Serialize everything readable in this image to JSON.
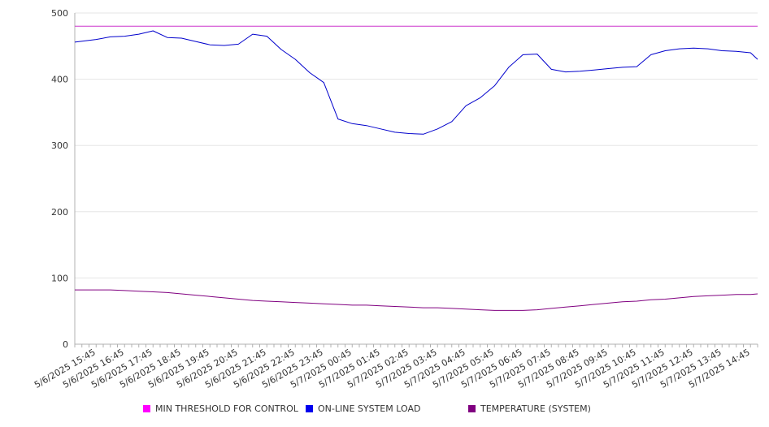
{
  "chart_data": {
    "type": "line",
    "title": "",
    "xlabel": "",
    "ylabel": "",
    "ylim": [
      0,
      500
    ],
    "yticks": [
      0,
      100,
      200,
      300,
      400,
      500
    ],
    "grid": true,
    "legend_position": "bottom",
    "x_tick_labels": [
      "5/6/2025 15:45",
      "5/6/2025 16:45",
      "5/6/2025 17:45",
      "5/6/2025 18:45",
      "5/6/2025 19:45",
      "5/6/2025 20:45",
      "5/6/2025 21:45",
      "5/6/2025 22:45",
      "5/6/2025 23:45",
      "5/7/2025 00:45",
      "5/7/2025 01:45",
      "5/7/2025 02:45",
      "5/7/2025 03:45",
      "5/7/2025 04:45",
      "5/7/2025 05:45",
      "5/7/2025 06:45",
      "5/7/2025 07:45",
      "5/7/2025 08:45",
      "5/7/2025 09:45",
      "5/7/2025 10:45",
      "5/7/2025 11:45",
      "5/7/2025 12:45",
      "5/7/2025 13:45",
      "5/7/2025 14:45"
    ],
    "x": [
      "5/6/2025 15:00",
      "5/6/2025 15:45",
      "5/6/2025 16:15",
      "5/6/2025 16:45",
      "5/6/2025 17:15",
      "5/6/2025 17:45",
      "5/6/2025 18:15",
      "5/6/2025 18:45",
      "5/6/2025 19:15",
      "5/6/2025 19:45",
      "5/6/2025 20:15",
      "5/6/2025 20:45",
      "5/6/2025 21:15",
      "5/6/2025 21:45",
      "5/6/2025 22:15",
      "5/6/2025 22:45",
      "5/6/2025 23:15",
      "5/6/2025 23:45",
      "5/7/2025 00:15",
      "5/7/2025 00:45",
      "5/7/2025 01:15",
      "5/7/2025 01:45",
      "5/7/2025 02:15",
      "5/7/2025 02:45",
      "5/7/2025 03:15",
      "5/7/2025 03:45",
      "5/7/2025 04:15",
      "5/7/2025 04:45",
      "5/7/2025 05:15",
      "5/7/2025 05:45",
      "5/7/2025 06:15",
      "5/7/2025 06:45",
      "5/7/2025 07:15",
      "5/7/2025 07:45",
      "5/7/2025 08:15",
      "5/7/2025 08:45",
      "5/7/2025 09:15",
      "5/7/2025 09:45",
      "5/7/2025 10:15",
      "5/7/2025 10:45",
      "5/7/2025 11:15",
      "5/7/2025 11:45",
      "5/7/2025 12:15",
      "5/7/2025 12:45",
      "5/7/2025 13:15",
      "5/7/2025 13:45",
      "5/7/2025 14:15",
      "5/7/2025 14:45",
      "5/7/2025 15:00"
    ],
    "series": [
      {
        "name": "MIN THRESHOLD FOR CONTROL",
        "color": "#cc33cc",
        "legend_color": "#ff00ff",
        "values": [
          480,
          480,
          480,
          480,
          480,
          480,
          480,
          480,
          480,
          480,
          480,
          480,
          480,
          480,
          480,
          480,
          480,
          480,
          480,
          480,
          480,
          480,
          480,
          480,
          480,
          480,
          480,
          480,
          480,
          480,
          480,
          480,
          480,
          480,
          480,
          480,
          480,
          480,
          480,
          480,
          480,
          480,
          480,
          480,
          480,
          480,
          480,
          480,
          480
        ]
      },
      {
        "name": "ON-LINE SYSTEM LOAD",
        "color": "#0000cc",
        "legend_color": "#0000ee",
        "values": [
          456,
          460,
          464,
          465,
          468,
          473,
          463,
          462,
          457,
          452,
          451,
          453,
          468,
          465,
          445,
          430,
          410,
          395,
          340,
          333,
          330,
          325,
          320,
          318,
          317,
          325,
          336,
          360,
          372,
          390,
          418,
          437,
          438,
          415,
          411,
          412,
          414,
          416,
          418,
          419,
          437,
          443,
          446,
          447,
          446,
          443,
          442,
          440,
          430
        ]
      },
      {
        "name": "TEMPERATURE (SYSTEM)",
        "color": "#800080",
        "legend_color": "#800080",
        "values": [
          82,
          82,
          82,
          81,
          80,
          79,
          78,
          76,
          74,
          72,
          70,
          68,
          66,
          65,
          64,
          63,
          62,
          61,
          60,
          59,
          59,
          58,
          57,
          56,
          55,
          55,
          54,
          53,
          52,
          51,
          51,
          51,
          52,
          54,
          56,
          58,
          60,
          62,
          64,
          65,
          67,
          68,
          70,
          72,
          73,
          74,
          75,
          75,
          76
        ]
      }
    ]
  }
}
